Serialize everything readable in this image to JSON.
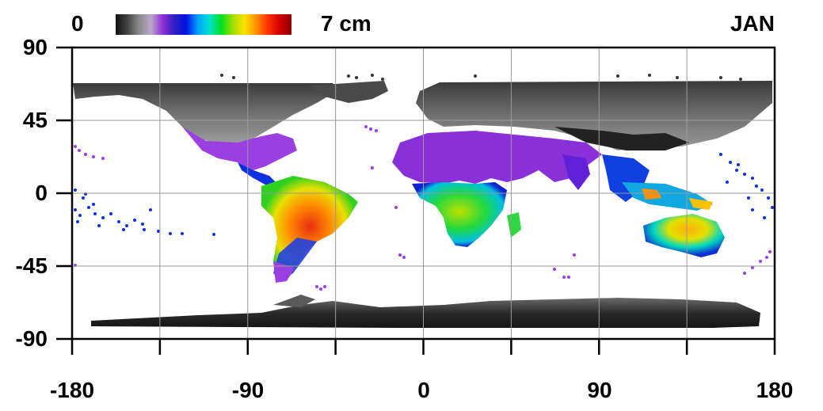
{
  "header": {
    "scale_min": "0",
    "scale_max": "7 cm",
    "month": "JAN"
  },
  "colorbar": {
    "stops": [
      "#111111",
      "#444444",
      "#8a8a8a",
      "#b8a8c8",
      "#9030d8",
      "#3020c0",
      "#0010e0",
      "#00a0ff",
      "#00e0d0",
      "#00e020",
      "#a0e000",
      "#ffe000",
      "#ff9000",
      "#ff3000",
      "#d00000",
      "#900000"
    ]
  },
  "axes": {
    "y_ticks": [
      "90",
      "45",
      "0",
      "-45",
      "-90"
    ],
    "x_ticks": [
      "-180",
      "-90",
      "0",
      "90",
      "180"
    ]
  },
  "colors": {
    "ocean": "#ffffff",
    "grid": "#9a9a9a",
    "frame": "#000000"
  }
}
